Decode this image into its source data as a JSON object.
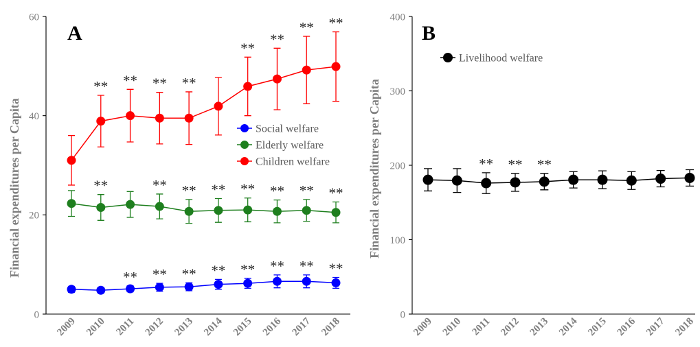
{
  "colors": {
    "background": "#ffffff",
    "axis_line": "#000000",
    "axis_text": "#7f7f7f",
    "legend_text": "#595959",
    "annotation_text": "#262626",
    "panel_label": "#000000"
  },
  "chart_data": [
    {
      "panel": "A",
      "type": "line",
      "categories": [
        "2009",
        "2010",
        "2011",
        "2012",
        "2013",
        "2014",
        "2015",
        "2016",
        "2017",
        "2018"
      ],
      "ylabel": "Financial expenditures per Capita",
      "ylim": [
        0,
        60
      ],
      "yticks": [
        0,
        20,
        40,
        60
      ],
      "grid": false,
      "legend_position": "center-right",
      "series": [
        {
          "name": "Social welfare",
          "color": "#0000ff",
          "values": [
            5.0,
            4.8,
            5.1,
            5.4,
            5.5,
            6.0,
            6.2,
            6.6,
            6.6,
            6.3
          ],
          "error": [
            0.6,
            0.5,
            0.6,
            0.8,
            0.8,
            1.0,
            1.0,
            1.3,
            1.3,
            1.1
          ],
          "annotations": [
            "",
            "",
            "**",
            "**",
            "**",
            "**",
            "**",
            "**",
            "**",
            "**"
          ]
        },
        {
          "name": "Elderly welfare",
          "color": "#1e7f1e",
          "values": [
            22.3,
            21.5,
            22.1,
            21.7,
            20.7,
            20.9,
            21.0,
            20.7,
            20.9,
            20.5
          ],
          "error": [
            2.6,
            2.6,
            2.6,
            2.5,
            2.4,
            2.4,
            2.4,
            2.3,
            2.2,
            2.1
          ],
          "annotations": [
            "",
            "**",
            "",
            "**",
            "**",
            "**",
            "**",
            "**",
            "**",
            "**"
          ]
        },
        {
          "name": "Children welfare",
          "color": "#ff0000",
          "values": [
            31.0,
            38.9,
            40.0,
            39.5,
            39.5,
            41.9,
            45.9,
            47.4,
            49.2,
            49.9
          ],
          "error": [
            5.0,
            5.2,
            5.3,
            5.2,
            5.3,
            5.8,
            5.9,
            6.2,
            6.8,
            7.0
          ],
          "annotations": [
            "",
            "**",
            "**",
            "**",
            "**",
            "",
            "**",
            "**",
            "**",
            "**"
          ]
        }
      ]
    },
    {
      "panel": "B",
      "type": "line",
      "categories": [
        "2009",
        "2010",
        "2011",
        "2012",
        "2013",
        "2014",
        "2015",
        "2016",
        "2017",
        "2018"
      ],
      "ylabel": "Financial expenditures per Capita",
      "ylim": [
        0,
        400
      ],
      "yticks": [
        0,
        100,
        200,
        300,
        400
      ],
      "grid": false,
      "legend_position": "top-left",
      "series": [
        {
          "name": "Livelihood welfare",
          "color": "#000000",
          "values": [
            180.5,
            179.5,
            176.0,
            177.0,
            178.0,
            180.5,
            180.5,
            179.5,
            182.0,
            183.0
          ],
          "error": [
            15,
            16,
            14,
            12,
            11,
            11,
            12,
            12,
            11,
            11
          ],
          "annotations": [
            "",
            "",
            "**",
            "**",
            "**",
            "",
            "",
            "",
            "",
            ""
          ]
        }
      ]
    }
  ]
}
